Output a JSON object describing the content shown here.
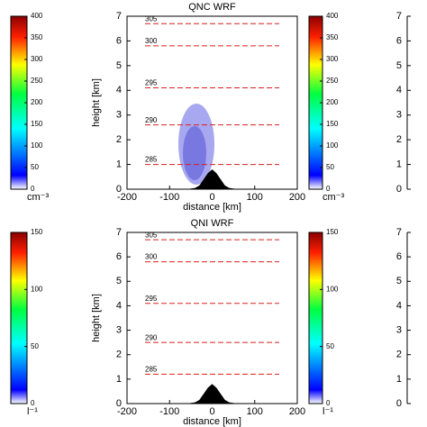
{
  "chart_data": [
    {
      "type": "contour",
      "title": "QNC WRF",
      "xlabel": "distance [km]",
      "ylabel": "height [km]",
      "xlim": [
        -200,
        200
      ],
      "xticks": [
        -200,
        -100,
        0,
        100,
        200
      ],
      "ylim": [
        0,
        7
      ],
      "yticks": [
        0,
        1,
        2,
        3,
        4,
        5,
        6,
        7
      ],
      "colorbar": {
        "lim": [
          0,
          400
        ],
        "ticks": [
          0,
          50,
          100,
          150,
          200,
          250,
          300,
          350,
          400
        ],
        "unit": "cm⁻³"
      },
      "isentropes": {
        "names": [
          "305",
          "300",
          "295",
          "290",
          "285"
        ],
        "values": [
          6.7,
          5.8,
          4.1,
          2.6,
          1.0
        ],
        "color": "#d62020"
      },
      "terrain": {
        "x": [
          -60,
          -40,
          -30,
          -20,
          -10,
          0,
          10,
          20,
          30,
          40,
          60
        ],
        "values": [
          0,
          0.05,
          0.15,
          0.4,
          0.65,
          0.8,
          0.65,
          0.4,
          0.15,
          0.05,
          0
        ]
      }
    },
    {
      "type": "contour",
      "title": "QNI WRF",
      "xlabel": "distance [km]",
      "ylabel": "height [km]",
      "xlim": [
        -200,
        200
      ],
      "xticks": [
        -200,
        -100,
        0,
        100,
        200
      ],
      "ylim": [
        0,
        7
      ],
      "yticks": [
        0,
        1,
        2,
        3,
        4,
        5,
        6,
        7
      ],
      "colorbar": {
        "lim": [
          0,
          150
        ],
        "ticks": [
          0,
          50,
          100,
          150
        ],
        "unit": "l⁻¹"
      },
      "isentropes": {
        "names": [
          "305",
          "300",
          "295",
          "290",
          "285"
        ],
        "values": [
          6.7,
          5.8,
          4.1,
          2.5,
          1.2
        ],
        "color": "#d62020"
      },
      "terrain": {
        "x": [
          -60,
          -40,
          -30,
          -20,
          -10,
          0,
          10,
          20,
          30,
          40,
          60
        ],
        "values": [
          0,
          0.05,
          0.15,
          0.4,
          0.65,
          0.8,
          0.65,
          0.4,
          0.15,
          0.05,
          0
        ]
      }
    }
  ]
}
